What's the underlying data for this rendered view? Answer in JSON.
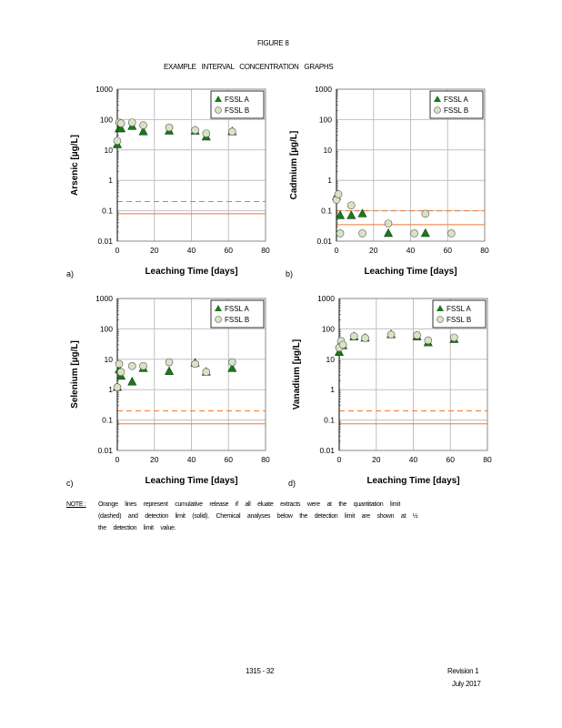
{
  "header": {
    "figure": "FIGURE 8",
    "title": "EXAMPLE INTERVAL CONCENTRATION GRAPHS"
  },
  "colors": {
    "series_a": "#1a7a1a",
    "series_b": "#d9e3c4",
    "limit_lines": "#f07830",
    "grid": "#c0c0c0"
  },
  "chart_data": [
    {
      "type": "scatter",
      "panel": "a)",
      "xlabel": "Leaching Time [days]",
      "ylabel": "Arsenic [µg/L]",
      "xlim": [
        0,
        80
      ],
      "xticks": [
        0,
        20,
        40,
        60,
        80
      ],
      "yscale": "log",
      "ylim": [
        0.01,
        1000
      ],
      "yticks": [
        "0.01",
        "0.1",
        "1",
        "10",
        "100",
        "1000"
      ],
      "grid": true,
      "legend": "top-right",
      "series": [
        {
          "name": "FSSL A",
          "marker": "triangle",
          "x": [
            0,
            1,
            2,
            8,
            14,
            28,
            42,
            48,
            62
          ],
          "y": [
            15,
            50,
            50,
            60,
            40,
            42,
            42,
            27,
            40
          ]
        },
        {
          "name": "FSSL B",
          "marker": "circle",
          "x": [
            0,
            1,
            2,
            8,
            14,
            28,
            42,
            48,
            62
          ],
          "y": [
            20,
            80,
            75,
            80,
            65,
            55,
            45,
            35,
            40
          ]
        }
      ],
      "limits": {
        "quantitation_dashed": 0.2,
        "detection_solid": 0.08
      }
    },
    {
      "type": "scatter",
      "panel": "b)",
      "xlabel": "Leaching Time [days]",
      "ylabel": "Cadmium [µg/L]",
      "xlim": [
        0,
        80
      ],
      "xticks": [
        0,
        20,
        40,
        60,
        80
      ],
      "yscale": "log",
      "ylim": [
        0.01,
        1000
      ],
      "yticks": [
        "0.01",
        "0.1",
        "1",
        "10",
        "100",
        "1000"
      ],
      "grid": true,
      "legend": "top-right",
      "series": [
        {
          "name": "FSSL A",
          "marker": "triangle",
          "x": [
            0,
            2,
            8,
            14,
            28,
            48
          ],
          "y": [
            0.3,
            0.07,
            0.07,
            0.08,
            0.018,
            0.018
          ]
        },
        {
          "name": "FSSL B",
          "marker": "circle",
          "x": [
            0,
            1,
            2,
            8,
            14,
            28,
            42,
            48,
            62
          ],
          "y": [
            0.23,
            0.35,
            0.018,
            0.15,
            0.018,
            0.038,
            0.018,
            0.08,
            0.018
          ]
        }
      ],
      "limits": {
        "quantitation_dashed": 0.1,
        "detection_solid": 0.035
      }
    },
    {
      "type": "scatter",
      "panel": "c)",
      "xlabel": "Leaching Time [days]",
      "ylabel": "Selenium [µg/L]",
      "xlim": [
        0,
        80
      ],
      "xticks": [
        0,
        20,
        40,
        60,
        80
      ],
      "yscale": "log",
      "ylim": [
        0.01,
        1000
      ],
      "yticks": [
        "0.01",
        "0.1",
        "1",
        "10",
        "100",
        "1000"
      ],
      "grid": true,
      "legend": "top-right",
      "series": [
        {
          "name": "FSSL A",
          "marker": "triangle",
          "x": [
            0,
            1,
            2,
            8,
            14,
            28,
            42,
            48,
            62
          ],
          "y": [
            1.2,
            4.5,
            2.8,
            1.8,
            5,
            4,
            7.5,
            3.8,
            5
          ]
        },
        {
          "name": "FSSL B",
          "marker": "circle",
          "x": [
            0,
            1,
            2,
            8,
            14,
            28,
            42,
            48,
            62
          ],
          "y": [
            1.2,
            7,
            3.8,
            6,
            6,
            8,
            7,
            3.8,
            8
          ]
        }
      ],
      "limits": {
        "quantitation_dashed": 0.2,
        "detection_solid": 0.075
      }
    },
    {
      "type": "scatter",
      "panel": "d)",
      "xlabel": "Leaching Time [days]",
      "ylabel": "Vanadium [µg/L]",
      "xlim": [
        0,
        80
      ],
      "xticks": [
        0,
        20,
        40,
        60,
        80
      ],
      "yscale": "log",
      "ylim": [
        0.01,
        1000
      ],
      "yticks": [
        "0.01",
        "0.1",
        "1",
        "10",
        "100",
        "1000"
      ],
      "grid": true,
      "legend": "top-right",
      "series": [
        {
          "name": "FSSL A",
          "marker": "triangle",
          "x": [
            0,
            1,
            2,
            8,
            14,
            28,
            42,
            48,
            62
          ],
          "y": [
            17,
            35,
            28,
            55,
            50,
            65,
            55,
            35,
            45
          ]
        },
        {
          "name": "FSSL B",
          "marker": "circle",
          "x": [
            0,
            1,
            2,
            8,
            14,
            28,
            42,
            48,
            62
          ],
          "y": [
            24,
            40,
            30,
            57,
            50,
            65,
            62,
            42,
            52
          ]
        }
      ],
      "limits": {
        "quantitation_dashed": 0.2,
        "detection_solid": 0.075
      }
    }
  ],
  "note": {
    "label": "NOTE :",
    "lines": [
      "Orange lines represent cumulative release if all eluate extracts were at the quantitation limit",
      "(dashed) and detection limit (solid). Chemical analyses below the detection limit are shown at ½",
      "the detection limit value."
    ]
  },
  "footer": {
    "page": "1315 - 32",
    "revision": "Revision 1",
    "date": "July 2017"
  }
}
